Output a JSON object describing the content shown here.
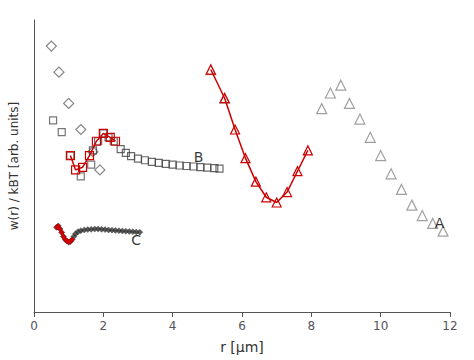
{
  "chart_data": {
    "type": "scatter",
    "xlabel": "r [μm]",
    "ylabel": "w(r) / kBT [arb. units]",
    "xlim": [
      0,
      12
    ],
    "xticks": [
      0,
      2,
      4,
      6,
      8,
      10,
      12
    ],
    "ylim": [
      0.0,
      1.12
    ],
    "yticks": [],
    "tick_labels": "x",
    "grid": false,
    "series": [
      {
        "type": "scatter",
        "marker": "diamond-open",
        "color": "#666666",
        "x": [
          0.5,
          0.72,
          1.0,
          1.35,
          1.7,
          1.9
        ],
        "values": [
          1.02,
          0.92,
          0.8,
          0.7,
          0.615,
          0.545
        ]
      },
      {
        "type": "scatter",
        "marker": "triangle-open",
        "color": "#888888",
        "x": [
          5.1,
          5.5,
          8.3,
          8.55,
          8.85,
          9.1,
          9.4,
          9.7,
          10.0,
          10.3,
          10.6,
          10.9,
          11.2,
          11.5,
          11.8
        ],
        "values": [
          0.93,
          0.82,
          0.78,
          0.84,
          0.87,
          0.8,
          0.74,
          0.67,
          0.6,
          0.53,
          0.47,
          0.41,
          0.37,
          0.34,
          0.31
        ]
      },
      {
        "type": "line",
        "marker": "triangle-open",
        "line_style": "solid",
        "color": "#cc0000",
        "x": [
          5.1,
          5.5,
          5.8,
          6.1,
          6.4,
          6.7,
          7.0,
          7.3,
          7.6,
          7.9
        ],
        "values": [
          0.93,
          0.82,
          0.7,
          0.59,
          0.5,
          0.44,
          0.42,
          0.46,
          0.54,
          0.62
        ]
      },
      {
        "type": "scatter",
        "marker": "square-open",
        "color": "#555555",
        "x": [
          0.55,
          0.8,
          1.05,
          1.35,
          1.65
        ],
        "values": [
          0.735,
          0.69,
          0.6,
          0.52,
          0.565
        ]
      },
      {
        "type": "line",
        "marker": "square-open",
        "line_style": "solid",
        "color": "#cc0000",
        "x": [
          1.05,
          1.2,
          1.4,
          1.6,
          1.8,
          2.0,
          2.2,
          2.35
        ],
        "values": [
          0.6,
          0.545,
          0.555,
          0.6,
          0.655,
          0.685,
          0.67,
          0.655
        ]
      },
      {
        "type": "scatter",
        "marker": "square-open",
        "color": "#444444",
        "x": [
          1.7,
          1.85,
          2.0,
          2.15,
          2.3,
          2.5,
          2.65,
          2.8,
          3.0,
          3.2,
          3.4,
          3.6,
          3.8,
          4.0,
          4.2,
          4.4,
          4.6,
          4.8,
          5.0,
          5.2,
          5.35
        ],
        "values": [
          0.62,
          0.655,
          0.685,
          0.67,
          0.655,
          0.625,
          0.61,
          0.598,
          0.588,
          0.582,
          0.576,
          0.572,
          0.568,
          0.565,
          0.562,
          0.56,
          0.558,
          0.556,
          0.554,
          0.552,
          0.55
        ]
      },
      {
        "type": "scatter",
        "marker": "diamond",
        "color": "#333333",
        "x": [
          0.65,
          0.7,
          0.75,
          0.8,
          0.85,
          0.9,
          0.95,
          1.0,
          1.05,
          1.1,
          1.15,
          1.2,
          1.27,
          1.35,
          1.45,
          1.55,
          1.65,
          1.75,
          1.85,
          1.95,
          2.05,
          2.15,
          2.25,
          2.35,
          2.45,
          2.55,
          2.65,
          2.75,
          2.85,
          2.95,
          3.05
        ],
        "values": [
          0.325,
          0.33,
          0.318,
          0.305,
          0.29,
          0.278,
          0.272,
          0.268,
          0.27,
          0.278,
          0.29,
          0.3,
          0.308,
          0.312,
          0.315,
          0.316,
          0.317,
          0.318,
          0.318,
          0.317,
          0.316,
          0.315,
          0.314,
          0.313,
          0.312,
          0.311,
          0.31,
          0.309,
          0.308,
          0.307,
          0.306
        ]
      },
      {
        "type": "line",
        "marker": "diamond",
        "line_style": "solid",
        "color": "#cc0000",
        "x": [
          0.65,
          0.7,
          0.75,
          0.8,
          0.85,
          0.9,
          0.95,
          1.0,
          1.05,
          1.1
        ],
        "values": [
          0.325,
          0.33,
          0.318,
          0.305,
          0.29,
          0.278,
          0.272,
          0.268,
          0.27,
          0.278
        ]
      }
    ],
    "annotations": [
      {
        "text": "A",
        "x": 11.5,
        "y": 0.34
      },
      {
        "text": "B",
        "x": 4.55,
        "y": 0.595
      },
      {
        "text": "C",
        "x": 2.75,
        "y": 0.275
      }
    ]
  }
}
